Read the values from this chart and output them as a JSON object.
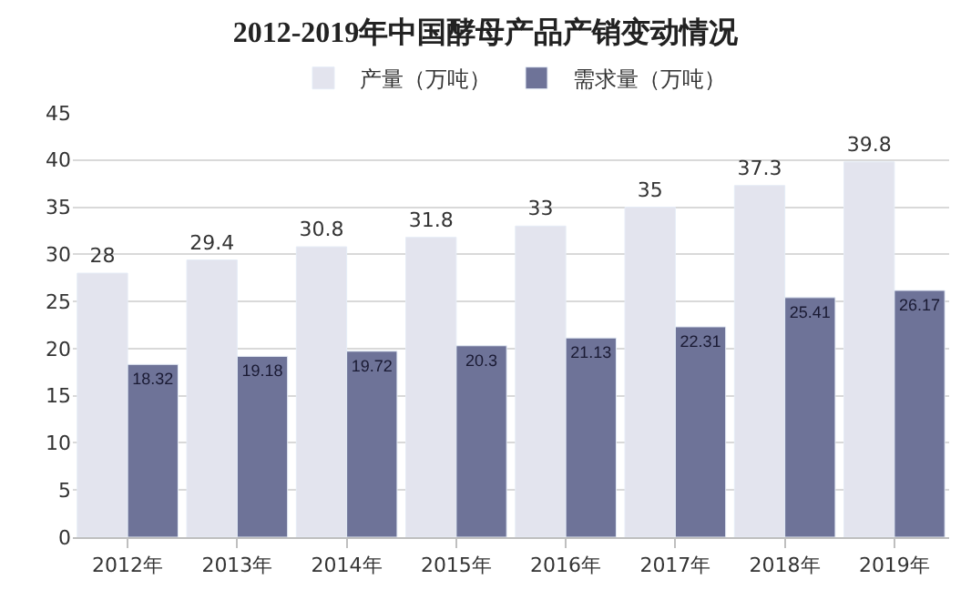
{
  "chart_data": {
    "type": "bar",
    "title": "2012-2019年中国酵母产品产销变动情况",
    "categories": [
      "2012年",
      "2013年",
      "2014年",
      "2015年",
      "2016年",
      "2017年",
      "2018年",
      "2019年"
    ],
    "series": [
      {
        "name": "产量（万吨）",
        "color": "#e3e4ee",
        "values": [
          28,
          29.4,
          30.8,
          31.8,
          33,
          35,
          37.3,
          39.8
        ]
      },
      {
        "name": "需求量（万吨）",
        "color": "#6e7398",
        "values": [
          18.32,
          19.18,
          19.72,
          20.3,
          21.13,
          22.31,
          25.41,
          26.17
        ]
      }
    ],
    "ylim": [
      0,
      45
    ],
    "yticks": [
      0,
      5,
      10,
      15,
      20,
      25,
      30,
      35,
      40,
      45
    ],
    "grid": "y",
    "legend": "top",
    "data_labels": true
  }
}
